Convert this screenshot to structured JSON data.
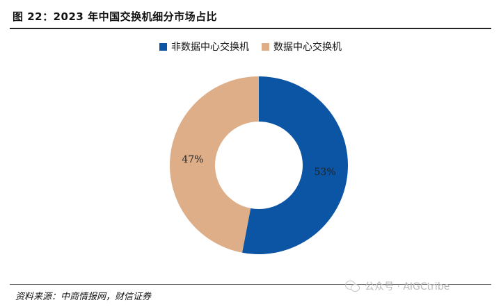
{
  "header": {
    "title": "图 22：2023 年中国交换机细分市场占比"
  },
  "chart_data": {
    "type": "pie",
    "donut": true,
    "legend_position": "top",
    "categories": [
      "非数据中心交换机",
      "数据中心交换机"
    ],
    "values": [
      53,
      47
    ],
    "data_labels": [
      "53%",
      "47%"
    ],
    "colors": [
      "#0b55a4",
      "#ddae87"
    ]
  },
  "footer": {
    "source": "资料来源：中商情报网，财信证券",
    "watermark_text": "公众号 · AIGCtribe",
    "watermark_icon": "wechat-icon"
  }
}
